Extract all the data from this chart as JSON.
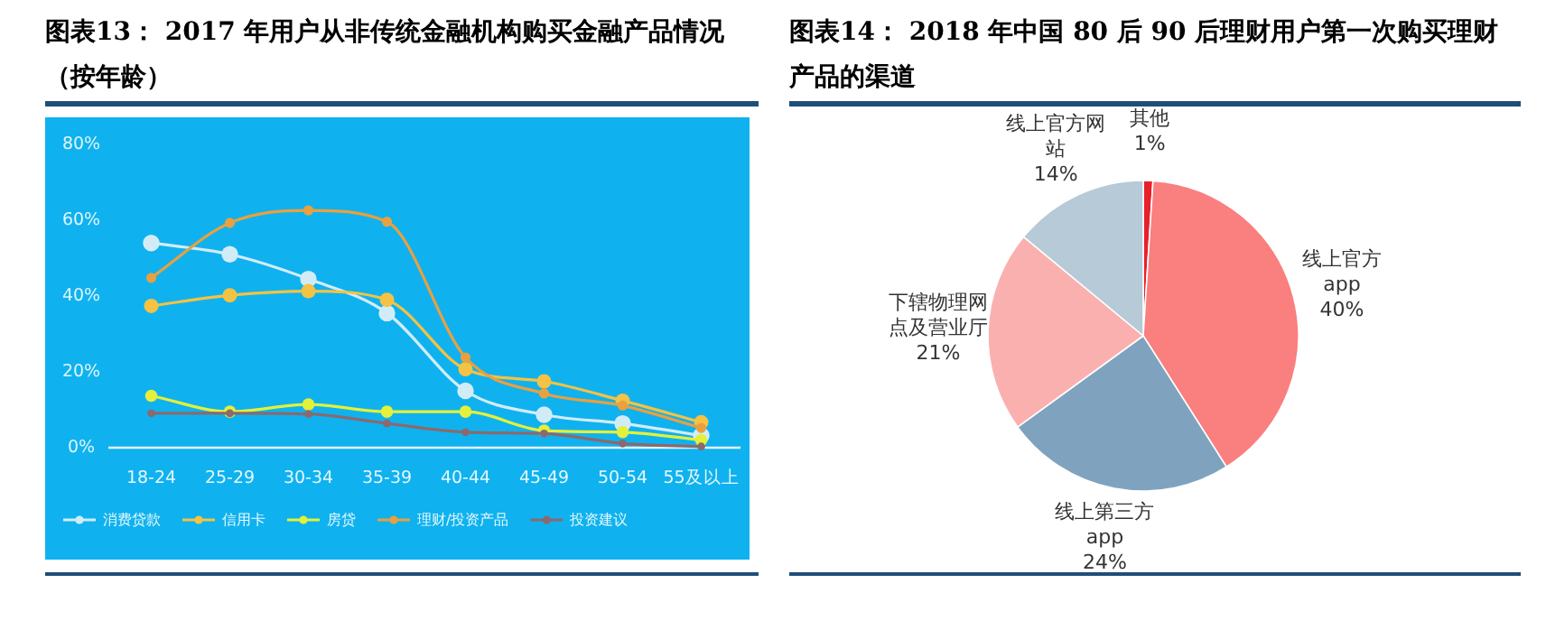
{
  "chart_data": [
    {
      "type": "line",
      "title": "图表13： 2017 年用户从非传统金融机构购买金融产品情况（按年龄）",
      "categories": [
        "18-24",
        "25-29",
        "30-34",
        "35-39",
        "40-44",
        "45-49",
        "50-54",
        "55及以上"
      ],
      "series": [
        {
          "name": "消费贷款",
          "color": "#d2ecf7",
          "values": [
            54,
            51,
            44.5,
            35.5,
            15,
            8.7,
            6.4,
            3.2
          ]
        },
        {
          "name": "信用卡",
          "color": "#f4c244",
          "values": [
            37.4,
            40.2,
            41.3,
            39,
            20.7,
            17.5,
            12.4,
            6.7
          ]
        },
        {
          "name": "房贷",
          "color": "#e4f03a",
          "values": [
            13.7,
            9.5,
            11.4,
            9.5,
            9.5,
            4.5,
            4.1,
            2
          ]
        },
        {
          "name": "理财/投资产品",
          "color": "#e9a040",
          "values": [
            44.8,
            59.3,
            62.6,
            59.6,
            23.8,
            14.3,
            11.1,
            5.2
          ]
        },
        {
          "name": "投资建议",
          "color": "#8a6a6e",
          "values": [
            9.1,
            9.1,
            8.9,
            6.4,
            4.1,
            3.7,
            1.1,
            0.3
          ]
        }
      ],
      "ylim": [
        0,
        80
      ],
      "yticks": [
        {
          "value": 0,
          "label": "0%"
        },
        {
          "value": 20,
          "label": "20%"
        },
        {
          "value": 40,
          "label": "40%"
        },
        {
          "value": 60,
          "label": "60%"
        },
        {
          "value": 80,
          "label": "80%"
        }
      ],
      "legend": "bottom",
      "marker": "circle"
    },
    {
      "type": "pie",
      "title": "图表14： 2018 年中国 80 后 90 后理财用户第一次购买理财产品的渠道",
      "categories": [
        "其他",
        "线上官方app",
        "线上第三方app",
        "下辖物理网点及营业厅",
        "线上官方网站"
      ],
      "values": [
        1,
        40,
        24,
        21,
        14
      ],
      "colors": [
        "#e8202a",
        "#fa7f7f",
        "#7fa3bf",
        "#fbb0b0",
        "#b6cad8"
      ],
      "value_labels": [
        "1%",
        "40%",
        "24%",
        "21%",
        "14%"
      ]
    }
  ]
}
